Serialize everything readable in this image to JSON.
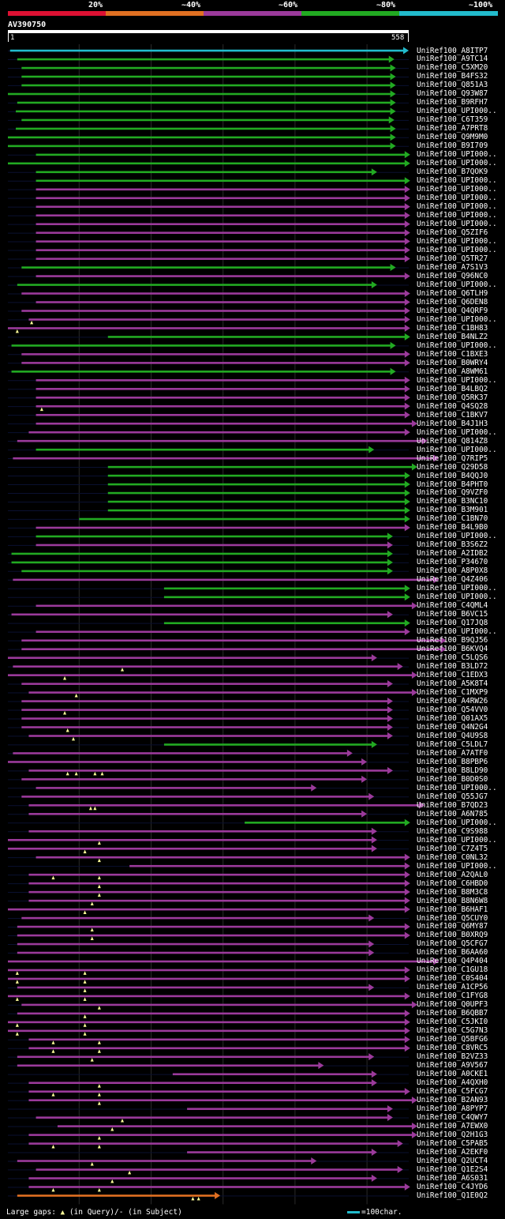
{
  "legend": {
    "labels": [
      "20%",
      "~40%",
      "~60%",
      "~80%",
      "~100%"
    ],
    "colors": [
      "#dd1133",
      "#e07022",
      "#9b3a9b",
      "#22aa22",
      "#22bbcc"
    ]
  },
  "query": {
    "id": "AV390750",
    "start": "1",
    "end": "558",
    "length": 558
  },
  "hits": [
    {
      "label": "UniRef100_A8ITP7",
      "pct": 100,
      "start": 4,
      "end": 558
    },
    {
      "label": "UniRef100_A9TC14",
      "pct": 80,
      "start": 14,
      "end": 538
    },
    {
      "label": "UniRef100_C5XM20",
      "pct": 80,
      "start": 20,
      "end": 540
    },
    {
      "label": "UniRef100_B4FS32",
      "pct": 80,
      "start": 20,
      "end": 540
    },
    {
      "label": "UniRef100_Q851A3",
      "pct": 80,
      "start": 20,
      "end": 540
    },
    {
      "label": "UniRef100_Q93W87",
      "pct": 80,
      "start": 1,
      "end": 540
    },
    {
      "label": "UniRef100_B9RFH7",
      "pct": 80,
      "start": 14,
      "end": 540
    },
    {
      "label": "UniRef100_UPI000..",
      "pct": 80,
      "start": 12,
      "end": 540
    },
    {
      "label": "UniRef100_C6T359",
      "pct": 80,
      "start": 20,
      "end": 538
    },
    {
      "label": "UniRef100_A7PRT8",
      "pct": 80,
      "start": 12,
      "end": 540
    },
    {
      "label": "UniRef100_Q9M9M0",
      "pct": 80,
      "start": 1,
      "end": 540
    },
    {
      "label": "UniRef100_B9I709",
      "pct": 80,
      "start": 1,
      "end": 540
    },
    {
      "label": "UniRef100_UPI000..",
      "pct": 80,
      "start": 40,
      "end": 560
    },
    {
      "label": "UniRef100_UPI000..",
      "pct": 80,
      "start": 1,
      "end": 560
    },
    {
      "label": "UniRef100_B7QOK9",
      "pct": 80,
      "start": 40,
      "end": 514
    },
    {
      "label": "UniRef100_UPI000..",
      "pct": 80,
      "start": 40,
      "end": 560
    },
    {
      "label": "UniRef100_UPI000..",
      "pct": 60,
      "start": 40,
      "end": 560
    },
    {
      "label": "UniRef100_UPI000..",
      "pct": 60,
      "start": 40,
      "end": 560
    },
    {
      "label": "UniRef100_UPI000..",
      "pct": 60,
      "start": 40,
      "end": 560
    },
    {
      "label": "UniRef100_UPI000..",
      "pct": 60,
      "start": 40,
      "end": 560
    },
    {
      "label": "UniRef100_UPI000..",
      "pct": 60,
      "start": 40,
      "end": 560
    },
    {
      "label": "UniRef100_Q5ZIF6",
      "pct": 60,
      "start": 40,
      "end": 560
    },
    {
      "label": "UniRef100_UPI000..",
      "pct": 60,
      "start": 40,
      "end": 560
    },
    {
      "label": "UniRef100_UPI000..",
      "pct": 60,
      "start": 40,
      "end": 560
    },
    {
      "label": "UniRef100_Q5TR27",
      "pct": 60,
      "start": 40,
      "end": 560
    },
    {
      "label": "UniRef100_A7S1V3",
      "pct": 80,
      "start": 20,
      "end": 540
    },
    {
      "label": "UniRef100_Q96NC0",
      "pct": 60,
      "start": 40,
      "end": 560
    },
    {
      "label": "UniRef100_UPI000..",
      "pct": 80,
      "start": 14,
      "end": 514
    },
    {
      "label": "UniRef100_Q6TLH9",
      "pct": 60,
      "start": 20,
      "end": 560
    },
    {
      "label": "UniRef100_Q6DEN8",
      "pct": 60,
      "start": 40,
      "end": 560
    },
    {
      "label": "UniRef100_Q4QRF9",
      "pct": 60,
      "start": 20,
      "end": 560
    },
    {
      "label": "UniRef100_UPI000..",
      "pct": 60,
      "start": 30,
      "end": 560,
      "gapQ": [
        34
      ]
    },
    {
      "label": "UniRef100_C1BH83",
      "pct": 60,
      "start": 1,
      "end": 560,
      "gapQ": [
        14
      ]
    },
    {
      "label": "UniRef100_B4NLZ2",
      "pct": 80,
      "start": 140,
      "end": 560
    },
    {
      "label": "UniRef100_UPI000..",
      "pct": 80,
      "start": 6,
      "end": 540
    },
    {
      "label": "UniRef100_C1BXE3",
      "pct": 60,
      "start": 20,
      "end": 560
    },
    {
      "label": "UniRef100_B0WRY4",
      "pct": 60,
      "start": 20,
      "end": 560
    },
    {
      "label": "UniRef100_A8WM61",
      "pct": 80,
      "start": 6,
      "end": 540
    },
    {
      "label": "UniRef100_UPI000..",
      "pct": 60,
      "start": 40,
      "end": 560
    },
    {
      "label": "UniRef100_B4LBQ2",
      "pct": 60,
      "start": 40,
      "end": 560
    },
    {
      "label": "UniRef100_Q5RK37",
      "pct": 60,
      "start": 40,
      "end": 560
    },
    {
      "label": "UniRef100_Q4SQ28",
      "pct": 60,
      "start": 40,
      "end": 560,
      "gapQ": [
        48
      ]
    },
    {
      "label": "UniRef100_C1BKV7",
      "pct": 60,
      "start": 40,
      "end": 560
    },
    {
      "label": "UniRef100_B4J1H3",
      "pct": 60,
      "start": 40,
      "end": 570
    },
    {
      "label": "UniRef100_UPI000..",
      "pct": 60,
      "start": 30,
      "end": 560
    },
    {
      "label": "UniRef100_Q814Z8",
      "pct": 60,
      "start": 14,
      "end": 584
    },
    {
      "label": "UniRef100_UPI000..",
      "pct": 80,
      "start": 40,
      "end": 510
    },
    {
      "label": "UniRef100_Q7RIP5",
      "pct": 60,
      "start": 8,
      "end": 600
    },
    {
      "label": "UniRef100_Q29D58",
      "pct": 80,
      "start": 140,
      "end": 570
    },
    {
      "label": "UniRef100_B4QQJ0",
      "pct": 80,
      "start": 140,
      "end": 560
    },
    {
      "label": "UniRef100_B4PHT0",
      "pct": 80,
      "start": 140,
      "end": 560
    },
    {
      "label": "UniRef100_Q9VZF0",
      "pct": 80,
      "start": 140,
      "end": 560
    },
    {
      "label": "UniRef100_B3NC10",
      "pct": 80,
      "start": 140,
      "end": 560
    },
    {
      "label": "UniRef100_B3M901",
      "pct": 80,
      "start": 140,
      "end": 560
    },
    {
      "label": "UniRef100_C1BN70",
      "pct": 80,
      "start": 100,
      "end": 560
    },
    {
      "label": "UniRef100_B4L9B0",
      "pct": 60,
      "start": 40,
      "end": 560
    },
    {
      "label": "UniRef100_UPI000..",
      "pct": 80,
      "start": 40,
      "end": 536
    },
    {
      "label": "UniRef100_B3S6Z2",
      "pct": 60,
      "start": 40,
      "end": 536
    },
    {
      "label": "UniRef100_A2IDB2",
      "pct": 80,
      "start": 6,
      "end": 536
    },
    {
      "label": "UniRef100_P34670",
      "pct": 80,
      "start": 6,
      "end": 536
    },
    {
      "label": "UniRef100_A8P0X8",
      "pct": 80,
      "start": 20,
      "end": 536
    },
    {
      "label": "UniRef100_Q4Z406",
      "pct": 60,
      "start": 8,
      "end": 600
    },
    {
      "label": "UniRef100_UPI000..",
      "pct": 80,
      "start": 218,
      "end": 560
    },
    {
      "label": "UniRef100_UPI000..",
      "pct": 80,
      "start": 218,
      "end": 560
    },
    {
      "label": "UniRef100_C4QML4",
      "pct": 60,
      "start": 40,
      "end": 570
    },
    {
      "label": "UniRef100_B6VC15",
      "pct": 60,
      "start": 6,
      "end": 536
    },
    {
      "label": "UniRef100_Q17JQ8",
      "pct": 80,
      "start": 218,
      "end": 560
    },
    {
      "label": "UniRef100_UPI000..",
      "pct": 60,
      "start": 40,
      "end": 560
    },
    {
      "label": "UniRef100_B9QJ56",
      "pct": 60,
      "start": 20,
      "end": 610
    },
    {
      "label": "UniRef100_B6KVQ4",
      "pct": 60,
      "start": 20,
      "end": 610
    },
    {
      "label": "UniRef100_C5LQS6",
      "pct": 60,
      "start": 1,
      "end": 514
    },
    {
      "label": "UniRef100_B3LD72",
      "pct": 60,
      "start": 8,
      "end": 550,
      "gapQ": [
        160
      ]
    },
    {
      "label": "UniRef100_C1EDX3",
      "pct": 60,
      "start": 1,
      "end": 570,
      "gapQ": [
        80
      ]
    },
    {
      "label": "UniRef100_A5K8T4",
      "pct": 60,
      "start": 20,
      "end": 536
    },
    {
      "label": "UniRef100_C1MXP9",
      "pct": 60,
      "start": 30,
      "end": 570,
      "gapQ": [
        96
      ]
    },
    {
      "label": "UniRef100_A4RW26",
      "pct": 60,
      "start": 20,
      "end": 536
    },
    {
      "label": "UniRef100_Q54VV0",
      "pct": 60,
      "start": 20,
      "end": 536,
      "gapQ": [
        80
      ]
    },
    {
      "label": "UniRef100_Q01AX5",
      "pct": 60,
      "start": 20,
      "end": 536
    },
    {
      "label": "UniRef100_Q4N2G4",
      "pct": 60,
      "start": 20,
      "end": 536,
      "gapQ": [
        84
      ]
    },
    {
      "label": "UniRef100_Q4U9S8",
      "pct": 60,
      "start": 30,
      "end": 536,
      "gapQ": [
        92
      ]
    },
    {
      "label": "UniRef100_C5LDL7",
      "pct": 80,
      "start": 218,
      "end": 514
    },
    {
      "label": "UniRef100_A7ATF0",
      "pct": 60,
      "start": 8,
      "end": 480
    },
    {
      "label": "UniRef100_B8PBP6",
      "pct": 60,
      "start": 1,
      "end": 500
    },
    {
      "label": "UniRef100_B8LD90",
      "pct": 60,
      "start": 30,
      "end": 536,
      "gapQ": [
        84,
        96,
        122,
        132
      ]
    },
    {
      "label": "UniRef100_B0D0S0",
      "pct": 60,
      "start": 20,
      "end": 500
    },
    {
      "label": "UniRef100_UPI000..",
      "pct": 60,
      "start": 40,
      "end": 430
    },
    {
      "label": "UniRef100_Q55JG7",
      "pct": 60,
      "start": 20,
      "end": 510
    },
    {
      "label": "UniRef100_B7QD23",
      "pct": 60,
      "start": 30,
      "end": 580,
      "gapQ": [
        116,
        122
      ]
    },
    {
      "label": "UniRef100_A6N785",
      "pct": 60,
      "start": 30,
      "end": 500
    },
    {
      "label": "UniRef100_UPI000..",
      "pct": 80,
      "start": 330,
      "end": 560
    },
    {
      "label": "UniRef100_C9S988",
      "pct": 60,
      "start": 30,
      "end": 514
    },
    {
      "label": "UniRef100_UPI000..",
      "pct": 60,
      "start": 1,
      "end": 514,
      "gapQ": [
        128
      ]
    },
    {
      "label": "UniRef100_C7Z4T5",
      "pct": 60,
      "start": 1,
      "end": 514,
      "gapQ": [
        108
      ]
    },
    {
      "label": "UniRef100_C0NL32",
      "pct": 60,
      "start": 40,
      "end": 560,
      "gapQ": [
        128
      ]
    },
    {
      "label": "UniRef100_UPI000..",
      "pct": 60,
      "start": 170,
      "end": 560
    },
    {
      "label": "UniRef100_A2QAL0",
      "pct": 60,
      "start": 30,
      "end": 560,
      "gapQ": [
        64,
        128
      ]
    },
    {
      "label": "UniRef100_C6HBD0",
      "pct": 60,
      "start": 30,
      "end": 560,
      "gapQ": [
        128
      ]
    },
    {
      "label": "UniRef100_B8M3C8",
      "pct": 60,
      "start": 30,
      "end": 560,
      "gapQ": [
        128
      ]
    },
    {
      "label": "UniRef100_B8N6W8",
      "pct": 60,
      "start": 30,
      "end": 560,
      "gapQ": [
        118
      ]
    },
    {
      "label": "UniRef100_B6HAF1",
      "pct": 60,
      "start": 1,
      "end": 560,
      "gapQ": [
        108
      ]
    },
    {
      "label": "UniRef100_Q5CUY0",
      "pct": 60,
      "start": 20,
      "end": 510
    },
    {
      "label": "UniRef100_Q6MY87",
      "pct": 60,
      "start": 14,
      "end": 560,
      "gapQ": [
        118
      ]
    },
    {
      "label": "UniRef100_B0XRQ9",
      "pct": 60,
      "start": 14,
      "end": 560,
      "gapQ": [
        118
      ]
    },
    {
      "label": "UniRef100_Q5CFG7",
      "pct": 60,
      "start": 14,
      "end": 510
    },
    {
      "label": "UniRef100_B6AA60",
      "pct": 60,
      "start": 14,
      "end": 510
    },
    {
      "label": "UniRef100_Q4P404",
      "pct": 60,
      "start": 1,
      "end": 600
    },
    {
      "label": "UniRef100_C1GU18",
      "pct": 60,
      "start": 1,
      "end": 560,
      "gapQ": [
        14,
        108
      ]
    },
    {
      "label": "UniRef100_C0S404",
      "pct": 60,
      "start": 1,
      "end": 560,
      "gapQ": [
        14,
        108
      ]
    },
    {
      "label": "UniRef100_A1CP56",
      "pct": 60,
      "start": 14,
      "end": 510,
      "gapQ": [
        108
      ]
    },
    {
      "label": "UniRef100_C1FYG8",
      "pct": 60,
      "start": 1,
      "end": 560,
      "gapQ": [
        14,
        108
      ]
    },
    {
      "label": "UniRef100_Q0UPF3",
      "pct": 60,
      "start": 20,
      "end": 570,
      "gapQ": [
        128
      ]
    },
    {
      "label": "UniRef100_B6QBB7",
      "pct": 60,
      "start": 14,
      "end": 560,
      "gapQ": [
        108
      ]
    },
    {
      "label": "UniRef100_C5JKI0",
      "pct": 60,
      "start": 1,
      "end": 560,
      "gapQ": [
        14,
        108
      ]
    },
    {
      "label": "UniRef100_C5G7N3",
      "pct": 60,
      "start": 1,
      "end": 560,
      "gapQ": [
        14,
        108
      ]
    },
    {
      "label": "UniRef100_Q5BFG6",
      "pct": 60,
      "start": 30,
      "end": 560,
      "gapQ": [
        64,
        128
      ]
    },
    {
      "label": "UniRef100_C8VRC5",
      "pct": 60,
      "start": 30,
      "end": 560,
      "gapQ": [
        64,
        128
      ]
    },
    {
      "label": "UniRef100_B2VZ33",
      "pct": 60,
      "start": 14,
      "end": 510,
      "gapQ": [
        118
      ]
    },
    {
      "label": "UniRef100_A9V567",
      "pct": 60,
      "start": 14,
      "end": 440
    },
    {
      "label": "UniRef100_A0CKE1",
      "pct": 60,
      "start": 230,
      "end": 514
    },
    {
      "label": "UniRef100_A4QXH0",
      "pct": 60,
      "start": 30,
      "end": 514,
      "gapQ": [
        128
      ]
    },
    {
      "label": "UniRef100_C5FCG7",
      "pct": 60,
      "start": 30,
      "end": 560,
      "gapQ": [
        64,
        128
      ]
    },
    {
      "label": "UniRef100_B2AN93",
      "pct": 60,
      "start": 30,
      "end": 570,
      "gapQ": [
        128
      ]
    },
    {
      "label": "UniRef100_A8PYP7",
      "pct": 60,
      "start": 250,
      "end": 536
    },
    {
      "label": "UniRef100_C4QWY7",
      "pct": 60,
      "start": 40,
      "end": 536,
      "gapQ": [
        160
      ]
    },
    {
      "label": "UniRef100_A7EWX0",
      "pct": 60,
      "start": 70,
      "end": 570,
      "gapQ": [
        146
      ]
    },
    {
      "label": "UniRef100_Q2H1G3",
      "pct": 60,
      "start": 30,
      "end": 570,
      "gapQ": [
        128
      ]
    },
    {
      "label": "UniRef100_C5PAB5",
      "pct": 60,
      "start": 30,
      "end": 550,
      "gapQ": [
        64,
        128
      ]
    },
    {
      "label": "UniRef100_A2EKF0",
      "pct": 60,
      "start": 250,
      "end": 514
    },
    {
      "label": "UniRef100_Q2UCT4",
      "pct": 60,
      "start": 14,
      "end": 430,
      "gapQ": [
        118
      ]
    },
    {
      "label": "UniRef100_Q1E2S4",
      "pct": 60,
      "start": 40,
      "end": 550,
      "gapQ": [
        170
      ]
    },
    {
      "label": "UniRef100_A6S031",
      "pct": 60,
      "start": 30,
      "end": 514,
      "gapQ": [
        146
      ]
    },
    {
      "label": "UniRef100_C4JYD6",
      "pct": 60,
      "start": 30,
      "end": 560,
      "gapQ": [
        64,
        128
      ]
    },
    {
      "label": "UniRef100_Q1E0Q2",
      "pct": 40,
      "start": 14,
      "end": 296,
      "gapQ": [
        258,
        266
      ]
    }
  ],
  "footer": {
    "gaps_prefix": "Large gaps:",
    "gaps_suffix": "(in Query)/- (in Subject)",
    "scale_label": "=100char."
  }
}
